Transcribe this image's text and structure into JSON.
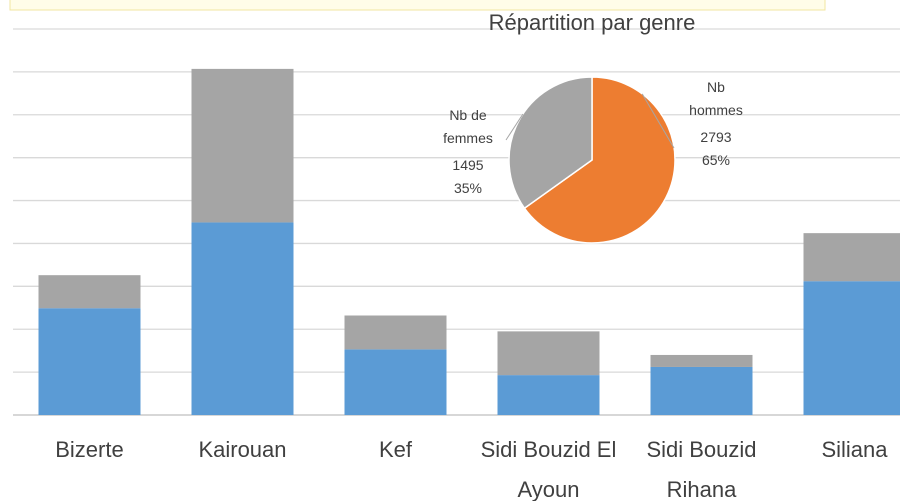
{
  "chart_data": [
    {
      "type": "stacked_bar",
      "categories": [
        "Bizerte",
        "Kairouan",
        "Kef",
        "Sidi Bouzid El Ayoun",
        "Sidi Bouzid Rihana",
        "Siliana"
      ],
      "series": [
        {
          "color": "#5b9bd5",
          "values": [
            498,
            898,
            306,
            186,
            224,
            624
          ]
        },
        {
          "color": "#a5a5a5",
          "values": [
            154,
            716,
            158,
            204,
            56,
            224
          ]
        }
      ],
      "ylim": [
        0,
        1800
      ],
      "yticks": [
        0,
        200,
        400,
        600,
        800,
        1000,
        1200,
        1400,
        1600,
        1800
      ],
      "grid": true
    },
    {
      "type": "pie",
      "title": "Répartition par genre",
      "categories": [
        "Nb hommes",
        "Nb de femmes"
      ],
      "values": [
        2793,
        1495
      ],
      "percent_labels": [
        "65%",
        "35%"
      ],
      "colors": [
        "#ed7d31",
        "#a5a5a5"
      ]
    }
  ]
}
